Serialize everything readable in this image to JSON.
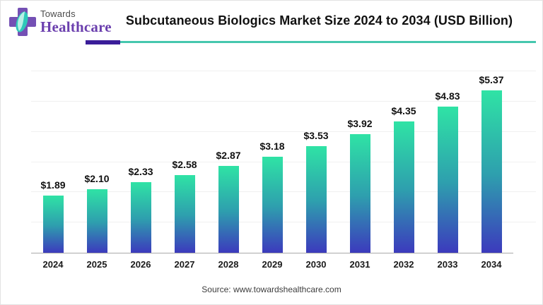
{
  "brand": {
    "name_top": "Towards",
    "name_bottom": "Healthcare"
  },
  "header": {
    "title": "Subcutaneous Biologics Market Size 2024 to 2034 (USD Billion)",
    "accent_purple": "#3a1d99",
    "accent_teal": "#45c7ae"
  },
  "footer": {
    "source": "Source: www.towardshealthcare.com"
  },
  "chart_data": {
    "type": "bar",
    "title": "Subcutaneous Biologics Market Size 2024 to 2034 (USD Billion)",
    "unit": "USD Billion",
    "categories": [
      "2024",
      "2025",
      "2026",
      "2027",
      "2028",
      "2029",
      "2030",
      "2031",
      "2032",
      "2033",
      "2034"
    ],
    "values": [
      1.89,
      2.1,
      2.33,
      2.58,
      2.87,
      3.18,
      3.53,
      3.92,
      4.35,
      4.83,
      5.37
    ],
    "value_labels": [
      "$1.89",
      "$2.10",
      "$2.33",
      "$2.58",
      "$2.87",
      "$3.18",
      "$3.53",
      "$3.92",
      "$4.35",
      "$4.83",
      "$5.37"
    ],
    "xlabel": "",
    "ylabel": "",
    "ylim": [
      0,
      6
    ],
    "grid": true,
    "gridline_step": 1,
    "legend": "none",
    "bar_gradient": [
      "#2fe3a5",
      "#2e9fae",
      "#3c3abd"
    ]
  }
}
